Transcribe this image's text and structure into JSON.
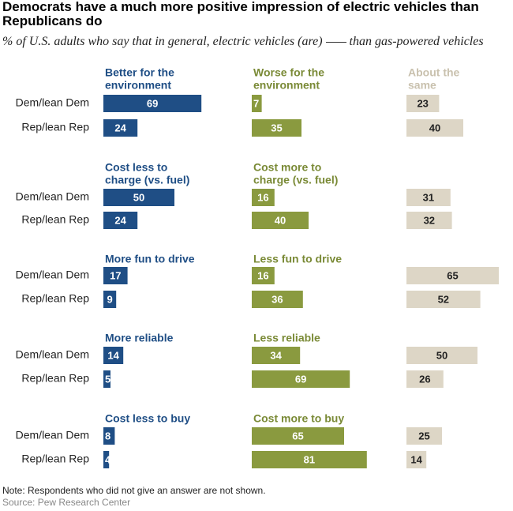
{
  "title": "Democrats have a much more positive impression of electric vehicles than Republicans do",
  "subtitle_before": "% of U.S. adults who say that in general, electric vehicles (are)",
  "subtitle_after": "than gas-powered vehicles",
  "note": "Note: Respondents who did not give an answer are not shown.",
  "source": "Source: Pew Research Center",
  "colors": {
    "positive": "#1f4e85",
    "negative": "#8a9a3f",
    "same": "#ddd6c6",
    "same_text": "#222222",
    "label_pos": "#1f4e85",
    "label_neg": "#7a8a36",
    "label_same": "#c9c1ae"
  },
  "chart_data": {
    "type": "bar",
    "row_labels": [
      "Dem/lean Dem",
      "Rep/lean Rep"
    ],
    "groups": [
      {
        "positive_label": [
          "Better for the",
          "environment"
        ],
        "negative_label": [
          "Worse for the",
          "environment"
        ],
        "same_label": [
          "About the",
          "same"
        ],
        "positive": [
          69,
          24
        ],
        "negative": [
          7,
          35
        ],
        "same": [
          23,
          40
        ]
      },
      {
        "positive_label": [
          "Cost less to",
          "charge (vs. fuel)"
        ],
        "negative_label": [
          "Cost more to",
          "charge (vs. fuel)"
        ],
        "same_label": [],
        "positive": [
          50,
          24
        ],
        "negative": [
          16,
          40
        ],
        "same": [
          31,
          32
        ]
      },
      {
        "positive_label": [
          "More fun to drive"
        ],
        "negative_label": [
          "Less fun to drive"
        ],
        "same_label": [],
        "positive": [
          17,
          9
        ],
        "negative": [
          16,
          36
        ],
        "same": [
          65,
          52
        ]
      },
      {
        "positive_label": [
          "More reliable"
        ],
        "negative_label": [
          "Less reliable"
        ],
        "same_label": [],
        "positive": [
          14,
          5
        ],
        "negative": [
          34,
          69
        ],
        "same": [
          50,
          26
        ]
      },
      {
        "positive_label": [
          "Cost less to buy"
        ],
        "negative_label": [
          "Cost more to buy"
        ],
        "same_label": [],
        "positive": [
          8,
          4
        ],
        "negative": [
          65,
          81
        ],
        "same": [
          25,
          14
        ]
      }
    ]
  }
}
